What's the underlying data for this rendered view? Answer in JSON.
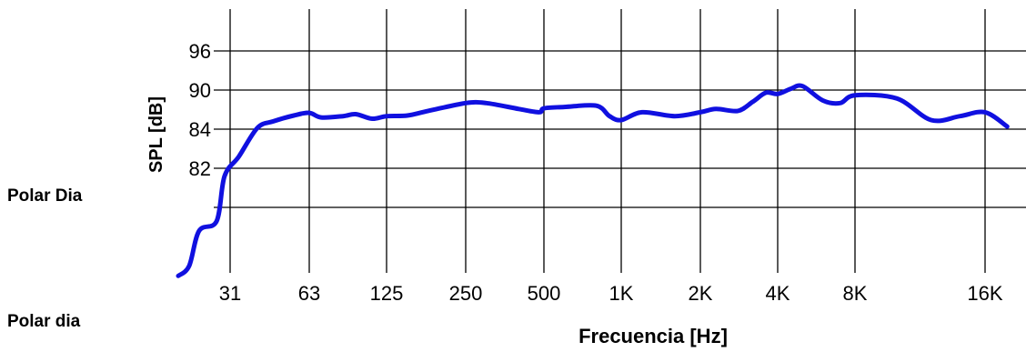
{
  "side_labels": [
    "Polar Dia",
    "Polar dia"
  ],
  "chart_data": {
    "type": "line",
    "xlabel": "Frecuencia [Hz]",
    "ylabel": "SPL [dB]",
    "x_tick_labels": [
      "31",
      "63",
      "125",
      "250",
      "500",
      "1K",
      "2K",
      "4K",
      "8K",
      "16K"
    ],
    "y_tick_labels": [
      "96",
      "90",
      "84",
      "82"
    ],
    "grid": true,
    "line_color": "#1010e0",
    "series": [
      {
        "points": [
          {
            "x": "20",
            "y": 76.5
          },
          {
            "x": "22",
            "y": 77.0
          },
          {
            "x": "24",
            "y": 78.8
          },
          {
            "x": "28",
            "y": 79.3
          },
          {
            "x": "30",
            "y": 81.6
          },
          {
            "x": "34",
            "y": 82.6
          },
          {
            "x": "40",
            "y": 84.2
          },
          {
            "x": "46",
            "y": 85.2
          },
          {
            "x": "55",
            "y": 86.1
          },
          {
            "x": "63",
            "y": 86.5
          },
          {
            "x": "70",
            "y": 85.8
          },
          {
            "x": "85",
            "y": 86.0
          },
          {
            "x": "95",
            "y": 86.3
          },
          {
            "x": "110",
            "y": 85.6
          },
          {
            "x": "125",
            "y": 86.0
          },
          {
            "x": "150",
            "y": 86.1
          },
          {
            "x": "180",
            "y": 86.8
          },
          {
            "x": "250",
            "y": 88.0
          },
          {
            "x": "300",
            "y": 88.0
          },
          {
            "x": "400",
            "y": 87.1
          },
          {
            "x": "480",
            "y": 86.6
          },
          {
            "x": "500",
            "y": 87.2
          },
          {
            "x": "600",
            "y": 87.4
          },
          {
            "x": "800",
            "y": 87.6
          },
          {
            "x": "900",
            "y": 86.0
          },
          {
            "x": "1000",
            "y": 85.4
          },
          {
            "x": "1200",
            "y": 86.6
          },
          {
            "x": "1600",
            "y": 86.0
          },
          {
            "x": "2000",
            "y": 86.6
          },
          {
            "x": "2300",
            "y": 87.1
          },
          {
            "x": "2800",
            "y": 86.8
          },
          {
            "x": "3200",
            "y": 88.2
          },
          {
            "x": "3600",
            "y": 89.6
          },
          {
            "x": "4000",
            "y": 89.4
          },
          {
            "x": "4500",
            "y": 90.2
          },
          {
            "x": "5000",
            "y": 90.6
          },
          {
            "x": "6000",
            "y": 88.4
          },
          {
            "x": "7000",
            "y": 88.0
          },
          {
            "x": "8000",
            "y": 89.2
          },
          {
            "x": "10000",
            "y": 88.7
          },
          {
            "x": "12000",
            "y": 85.4
          },
          {
            "x": "14000",
            "y": 86.0
          },
          {
            "x": "16000",
            "y": 86.6
          },
          {
            "x": "18000",
            "y": 84.4
          }
        ]
      }
    ]
  }
}
